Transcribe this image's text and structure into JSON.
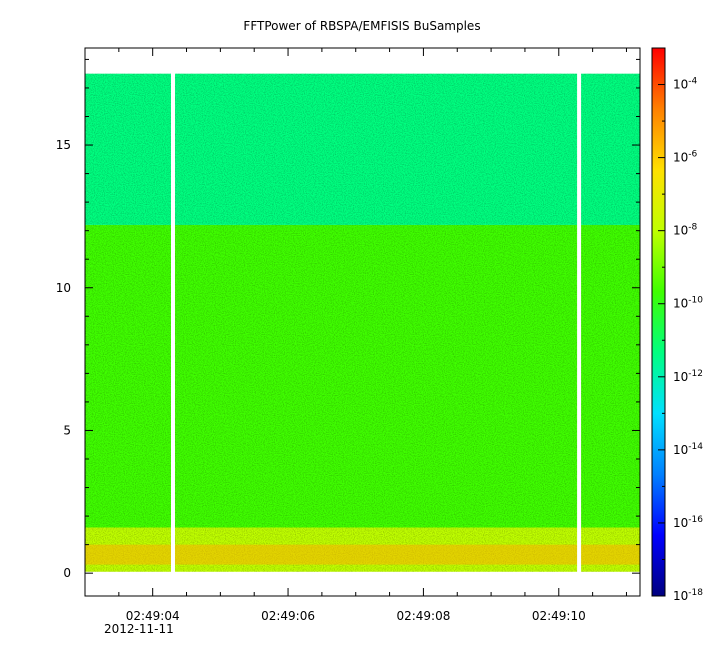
{
  "chart_data": {
    "type": "heatmap",
    "title": "FFTPower of RBSPA/EMFISIS  BuSamples",
    "xlabel": "",
    "ylabel": "",
    "x_ticks": [
      "02:49:04",
      "02:49:06",
      "02:49:08",
      "02:49:10"
    ],
    "x_date": "2012-11-11",
    "y_ticks": [
      "0",
      "5",
      "10",
      "15"
    ],
    "ylim": [
      -0.8,
      18.4
    ],
    "xlim_seconds": [
      3.0,
      11.2
    ],
    "x_range_covered_seconds": [
      3.0,
      11.2
    ],
    "data_gaps_seconds": [
      4.3,
      10.3
    ],
    "y_range_covered": [
      0.05,
      17.5
    ],
    "bands": [
      {
        "y_from": 0.05,
        "y_to": 1.6,
        "level": "1e-8"
      },
      {
        "y_from": 1.6,
        "y_to": 12.2,
        "level": "1e-10"
      },
      {
        "y_from": 12.2,
        "y_to": 17.5,
        "level": "1e-12"
      }
    ],
    "colorbar": {
      "scale": "log",
      "range": [
        "1e-18",
        "1e-3"
      ],
      "tick_labels": [
        {
          "base": "10",
          "exp": "-4"
        },
        {
          "base": "10",
          "exp": "-6"
        },
        {
          "base": "10",
          "exp": "-8"
        },
        {
          "base": "10",
          "exp": "-10"
        },
        {
          "base": "10",
          "exp": "-12"
        },
        {
          "base": "10",
          "exp": "-14"
        },
        {
          "base": "10",
          "exp": "-16"
        },
        {
          "base": "10",
          "exp": "-18"
        }
      ],
      "colors": [
        "#00007f",
        "#0000ff",
        "#0080ff",
        "#00e0ff",
        "#00ff80",
        "#40ff00",
        "#c0ff00",
        "#ffe000",
        "#ff8000",
        "#ff0000"
      ]
    }
  }
}
